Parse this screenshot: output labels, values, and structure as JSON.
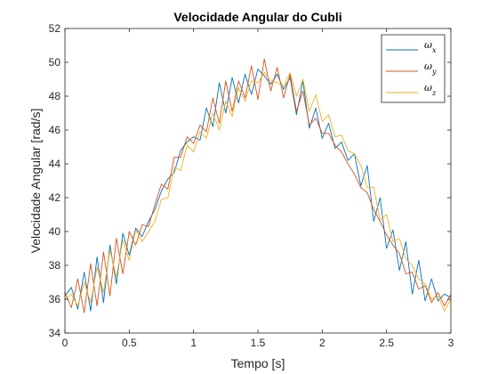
{
  "chart_data": {
    "type": "line",
    "title": "Velocidade Angular do Cubli",
    "xlabel": "Tempo [s]",
    "ylabel": "Velocidade Angular [rad/s]",
    "xlim": [
      0,
      3
    ],
    "ylim": [
      34,
      52
    ],
    "xticks": [
      0,
      0.5,
      1,
      1.5,
      2,
      2.5,
      3
    ],
    "xtick_labels": [
      "0",
      "0.5",
      "1",
      "1.5",
      "2",
      "2.5",
      "3"
    ],
    "yticks": [
      34,
      36,
      38,
      40,
      42,
      44,
      46,
      48,
      50,
      52
    ],
    "ytick_labels": [
      "34",
      "36",
      "38",
      "40",
      "42",
      "44",
      "46",
      "48",
      "50",
      "52"
    ],
    "grid": false,
    "legend_position": "top-right",
    "x": [
      0.0,
      0.05,
      0.1,
      0.15,
      0.2,
      0.25,
      0.3,
      0.35,
      0.4,
      0.45,
      0.5,
      0.55,
      0.6,
      0.65,
      0.7,
      0.75,
      0.8,
      0.85,
      0.9,
      0.95,
      1.0,
      1.05,
      1.1,
      1.15,
      1.2,
      1.25,
      1.3,
      1.35,
      1.4,
      1.45,
      1.5,
      1.55,
      1.6,
      1.65,
      1.7,
      1.75,
      1.8,
      1.85,
      1.9,
      1.95,
      2.0,
      2.05,
      2.1,
      2.15,
      2.2,
      2.25,
      2.3,
      2.35,
      2.4,
      2.45,
      2.5,
      2.55,
      2.6,
      2.65,
      2.7,
      2.75,
      2.8,
      2.85,
      2.9,
      2.95,
      3.0
    ],
    "series": [
      {
        "name": "ω",
        "subscript": "x",
        "color": "#0072BD",
        "values": [
          36.2,
          36.7,
          35.4,
          37.6,
          35.3,
          38.5,
          35.8,
          39.2,
          36.9,
          39.9,
          38.6,
          40.2,
          39.7,
          40.6,
          41.3,
          42.4,
          43.1,
          43.5,
          44.8,
          45.3,
          45.6,
          45.4,
          47.3,
          46.2,
          48.8,
          47.0,
          49.1,
          47.6,
          49.3,
          48.1,
          49.6,
          49.2,
          48.7,
          49.3,
          48.4,
          49.1,
          46.9,
          48.9,
          46.1,
          47.3,
          45.5,
          46.4,
          44.9,
          45.3,
          44.2,
          44.6,
          42.7,
          43.9,
          40.6,
          42.0,
          39.0,
          40.1,
          37.7,
          39.4,
          36.3,
          38.3,
          35.9,
          37.2,
          35.9,
          36.3,
          36.1
        ]
      },
      {
        "name": "ω",
        "subscript": "y",
        "color": "#D95319",
        "values": [
          36.4,
          35.5,
          37.2,
          35.2,
          38.1,
          35.6,
          38.8,
          36.2,
          39.6,
          37.5,
          40.0,
          39.2,
          40.4,
          40.3,
          41.6,
          42.8,
          42.5,
          44.4,
          44.4,
          45.6,
          45.2,
          46.3,
          45.9,
          47.9,
          46.4,
          48.9,
          47.1,
          48.9,
          47.9,
          49.8,
          47.8,
          50.2,
          48.3,
          49.7,
          47.9,
          49.3,
          47.1,
          48.3,
          46.3,
          46.7,
          45.8,
          45.8,
          45.1,
          44.7,
          44.0,
          43.4,
          42.6,
          42.3,
          41.3,
          40.6,
          39.8,
          39.2,
          38.7,
          37.5,
          37.6,
          36.6,
          36.8,
          35.8,
          36.4,
          35.6,
          36.3
        ]
      },
      {
        "name": "ω",
        "subscript": "z",
        "color": "#EDB120",
        "values": [
          36.0,
          36.3,
          35.6,
          37.0,
          35.8,
          37.9,
          36.4,
          38.9,
          37.3,
          39.5,
          38.3,
          40.1,
          39.4,
          40.0,
          40.6,
          41.9,
          42.0,
          43.8,
          43.6,
          45.1,
          44.7,
          45.9,
          45.5,
          47.0,
          46.0,
          47.7,
          46.8,
          48.5,
          47.7,
          48.9,
          48.8,
          49.4,
          48.9,
          48.8,
          48.6,
          49.4,
          48.0,
          49.0,
          47.1,
          48.1,
          46.5,
          46.9,
          45.6,
          45.7,
          44.8,
          44.6,
          43.9,
          42.6,
          42.6,
          40.7,
          41.0,
          39.4,
          39.6,
          38.4,
          38.0,
          37.2,
          36.9,
          36.0,
          36.2,
          35.3,
          36.0
        ]
      }
    ]
  }
}
